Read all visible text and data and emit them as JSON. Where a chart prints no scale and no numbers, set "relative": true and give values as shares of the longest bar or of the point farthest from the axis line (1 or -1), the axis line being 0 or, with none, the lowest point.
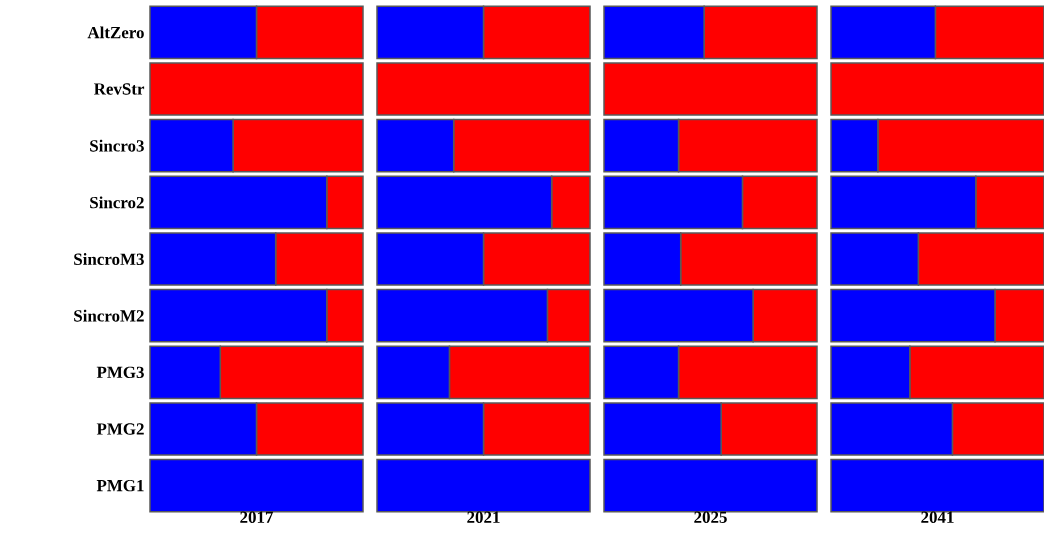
{
  "chart_data": [
    {
      "type": "bar",
      "orientation": "horizontal",
      "stacked": true,
      "relative": true,
      "xlabel": "2017",
      "tick_labels": "y",
      "categories": [
        "AltZero",
        "RevStr",
        "Sincro3",
        "Sincro2",
        "SincroM3",
        "SincroM2",
        "PMG3",
        "PMG2",
        "PMG1"
      ],
      "series": [
        {
          "color": "#0000ff",
          "values": [
            0.5,
            0,
            0.39,
            0.83,
            0.59,
            0.83,
            0.33,
            0.5,
            1
          ]
        },
        {
          "color": "#ff0000",
          "values": [
            0.5,
            1,
            0.61,
            0.17,
            0.41,
            0.17,
            0.67,
            0.5,
            0
          ]
        }
      ]
    },
    {
      "type": "bar",
      "orientation": "horizontal",
      "stacked": true,
      "relative": true,
      "xlabel": "2021",
      "categories": [
        null,
        null,
        null,
        null,
        null,
        null,
        null,
        null,
        null
      ],
      "series": [
        {
          "color": "#0000ff",
          "values": [
            0.5,
            0,
            0.36,
            0.82,
            0.5,
            0.8,
            0.34,
            0.5,
            1
          ]
        },
        {
          "color": "#ff0000",
          "values": [
            0.5,
            1,
            0.64,
            0.18,
            0.5,
            0.2,
            0.66,
            0.5,
            0
          ]
        }
      ]
    },
    {
      "type": "bar",
      "orientation": "horizontal",
      "stacked": true,
      "relative": true,
      "xlabel": "2025",
      "categories": [
        null,
        null,
        null,
        null,
        null,
        null,
        null,
        null,
        null
      ],
      "series": [
        {
          "color": "#0000ff",
          "values": [
            0.47,
            0,
            0.35,
            0.65,
            0.36,
            0.7,
            0.35,
            0.55,
            1
          ]
        },
        {
          "color": "#ff0000",
          "values": [
            0.53,
            1,
            0.65,
            0.35,
            0.64,
            0.3,
            0.65,
            0.45,
            0
          ]
        }
      ]
    },
    {
      "type": "bar",
      "orientation": "horizontal",
      "stacked": true,
      "relative": true,
      "xlabel": "2041",
      "categories": [
        null,
        null,
        null,
        null,
        null,
        null,
        null,
        null,
        null
      ],
      "series": [
        {
          "color": "#0000ff",
          "values": [
            0.49,
            0,
            0.22,
            0.68,
            0.41,
            0.77,
            0.37,
            0.57,
            1
          ]
        },
        {
          "color": "#ff0000",
          "values": [
            0.51,
            1,
            0.78,
            0.32,
            0.59,
            0.23,
            0.63,
            0.43,
            0
          ]
        }
      ]
    }
  ]
}
